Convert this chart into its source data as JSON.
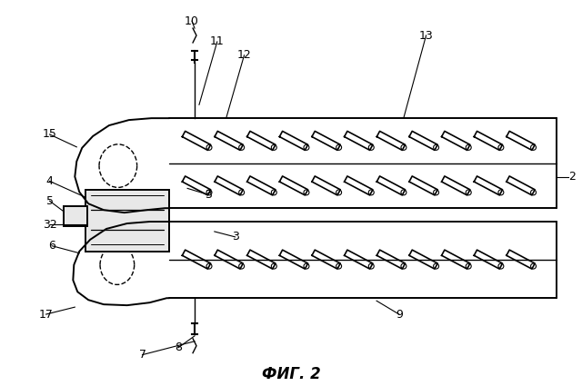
{
  "fig_title": "ФИГ. 2",
  "bg_color": "#ffffff",
  "line_color": "#000000",
  "gray_fill": "#d8d8d8"
}
